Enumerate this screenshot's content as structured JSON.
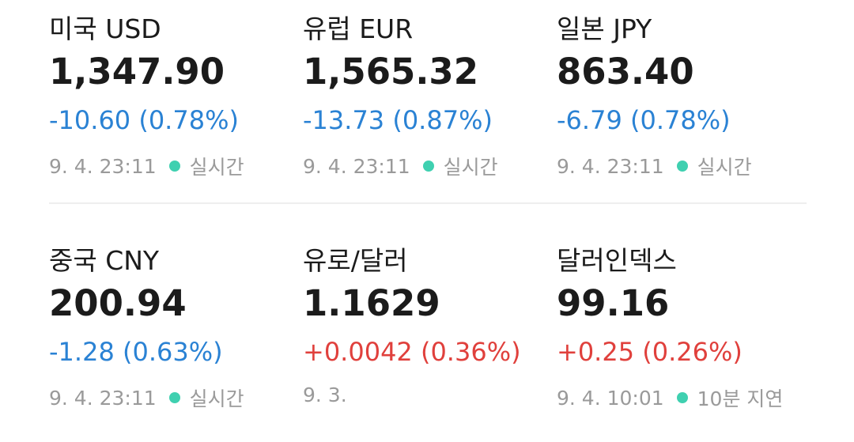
{
  "items": [
    {
      "name": "미국 USD",
      "price": "1,347.90",
      "change": "-10.60 (0.78%)",
      "color": "#2a82d4",
      "time": "9. 4. 23:11",
      "status": "실시간"
    },
    {
      "name": "유럽 EUR",
      "price": "1,565.32",
      "change": "-13.73 (0.87%)",
      "color": "#2a82d4",
      "time": "9. 4. 23:11",
      "status": "실시간"
    },
    {
      "name": "일본 JPY",
      "price": "863.40",
      "change": "-6.79 (0.78%)",
      "color": "#2a82d4",
      "time": "9. 4. 23:11",
      "status": "실시간"
    },
    {
      "name": "중국 CNY",
      "price": "200.94",
      "change": "-1.28 (0.63%)",
      "color": "#2a82d4",
      "time": "9. 4. 23:11",
      "status": "실시간"
    },
    {
      "name": "유로/달러",
      "price": "1.1629",
      "change": "+0.0042 (0.36%)",
      "color": "#e0403c",
      "time": "9. 3."
    },
    {
      "name": "달러인덱스",
      "price": "99.16",
      "change": "+0.25 (0.26%)",
      "color": "#e0403c",
      "time": "9. 4. 10:01",
      "status": "10분 지연"
    }
  ]
}
